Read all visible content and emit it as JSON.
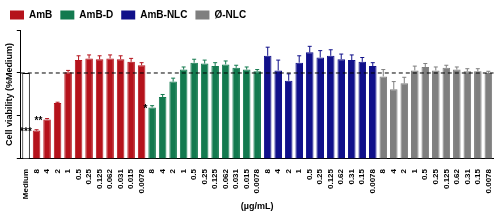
{
  "chart_data": {
    "type": "bar",
    "y_label": "Cell viability (%Medium)",
    "x_label": "(µg/mL)",
    "categories": [
      "Medium",
      "8",
      "4",
      "2",
      "1",
      "0.5",
      "0.25",
      "0.125",
      "0.062",
      "0.031",
      "0.015",
      "0.0078",
      "8",
      "4",
      "2",
      "1",
      "0.5",
      "0.25",
      "0.125",
      "0.062",
      "0.031",
      "0.015",
      "0.0078",
      "8",
      "4",
      "2",
      "1",
      "0.5",
      "0.25",
      "0.125",
      "0.62",
      "0.31",
      "0.15",
      "0.0078",
      "8",
      "4",
      "2",
      "1",
      "0.5",
      "0.25",
      "0.125",
      "0.62",
      "0.31",
      "0.15",
      "0.0078"
    ],
    "series": [
      {
        "name": "AmB",
        "color": "#b5121b",
        "colors": [
          "#ffffff",
          "#b5121b",
          "#b5121b",
          "#b5121b",
          "#b5121b",
          "#b5121b",
          "#b5121b",
          "#b5121b",
          "#b5121b",
          "#b5121b",
          "#b5121b",
          "#b5121b",
          null,
          null,
          null,
          null,
          null,
          null,
          null,
          null,
          null,
          null,
          null,
          null,
          null,
          null,
          null,
          null,
          null,
          null,
          null,
          null,
          null,
          null,
          null,
          null,
          null,
          null,
          null,
          null,
          null,
          null,
          null,
          null,
          null
        ],
        "values": [
          100,
          33,
          46,
          65,
          101,
          115,
          117,
          116,
          117,
          116,
          113,
          109,
          null,
          null,
          null,
          null,
          null,
          null,
          null,
          null,
          null,
          null,
          null,
          null,
          null,
          null,
          null,
          null,
          null,
          null,
          null,
          null,
          null,
          null,
          null,
          null,
          null,
          null,
          null,
          null,
          null,
          null,
          null,
          null,
          null
        ],
        "errors": [
          0,
          1,
          1,
          1,
          2,
          5,
          4,
          4,
          4,
          4,
          4,
          3,
          null,
          null,
          null,
          null,
          null,
          null,
          null,
          null,
          null,
          null,
          null,
          null,
          null,
          null,
          null,
          null,
          null,
          null,
          null,
          null,
          null,
          null,
          null,
          null,
          null,
          null,
          null,
          null,
          null,
          null,
          null,
          null,
          null
        ]
      },
      {
        "name": "AmB-D",
        "color": "#137a4f",
        "values": [
          null,
          null,
          null,
          null,
          null,
          null,
          null,
          null,
          null,
          null,
          null,
          null,
          60,
          72,
          90,
          104,
          112,
          111,
          108,
          110,
          106,
          104,
          102,
          null,
          null,
          null,
          null,
          null,
          null,
          null,
          null,
          null,
          null,
          null,
          null,
          null,
          null,
          null,
          null,
          null,
          null,
          null,
          null,
          null,
          null
        ],
        "errors": [
          null,
          null,
          null,
          null,
          null,
          null,
          null,
          null,
          null,
          null,
          null,
          null,
          2,
          3,
          4,
          3,
          4,
          4,
          4,
          4,
          3,
          3,
          2,
          null,
          null,
          null,
          null,
          null,
          null,
          null,
          null,
          null,
          null,
          null,
          null,
          null,
          null,
          null,
          null,
          null,
          null,
          null,
          null,
          null,
          null
        ]
      },
      {
        "name": "AmB-NLC",
        "color": "#10108a",
        "values": [
          null,
          null,
          null,
          null,
          null,
          null,
          null,
          null,
          null,
          null,
          null,
          null,
          null,
          null,
          null,
          null,
          null,
          null,
          null,
          null,
          null,
          null,
          null,
          120,
          103,
          91,
          112,
          124,
          118,
          120,
          116,
          115,
          113,
          108,
          null,
          null,
          null,
          null,
          null,
          null,
          null,
          null,
          null,
          null,
          null
        ],
        "errors": [
          null,
          null,
          null,
          null,
          null,
          null,
          null,
          null,
          null,
          null,
          null,
          null,
          null,
          null,
          null,
          null,
          null,
          null,
          null,
          null,
          null,
          null,
          null,
          10,
          12,
          8,
          8,
          7,
          8,
          7,
          6,
          6,
          5,
          4,
          null,
          null,
          null,
          null,
          null,
          null,
          null,
          null,
          null,
          null,
          null
        ]
      },
      {
        "name": "Ø-NLC",
        "color": "#7f7f7f",
        "values": [
          null,
          null,
          null,
          null,
          null,
          null,
          null,
          null,
          null,
          null,
          null,
          null,
          null,
          null,
          null,
          null,
          null,
          null,
          null,
          null,
          null,
          null,
          null,
          null,
          null,
          null,
          null,
          null,
          null,
          null,
          null,
          null,
          null,
          null,
          96,
          81,
          88,
          103,
          107,
          103,
          106,
          104,
          102,
          102,
          100
        ],
        "errors": [
          null,
          null,
          null,
          null,
          null,
          null,
          null,
          null,
          null,
          null,
          null,
          null,
          null,
          null,
          null,
          null,
          null,
          null,
          null,
          null,
          null,
          null,
          null,
          null,
          null,
          null,
          null,
          null,
          null,
          null,
          null,
          null,
          null,
          null,
          8,
          9,
          7,
          5,
          4,
          4,
          3,
          3,
          3,
          3,
          2
        ]
      }
    ],
    "annotations": [
      {
        "series": "AmB",
        "index": 1,
        "text": "***"
      },
      {
        "series": "AmB",
        "index": 2,
        "text": "**"
      },
      {
        "series": "AmB-D",
        "index": 12,
        "text": "*"
      }
    ],
    "hline": 100,
    "ylim": [
      0,
      150
    ],
    "yticks": [
      0,
      50,
      100,
      150
    ],
    "tick_labels": "x",
    "grid": false,
    "legend": "top-left"
  }
}
